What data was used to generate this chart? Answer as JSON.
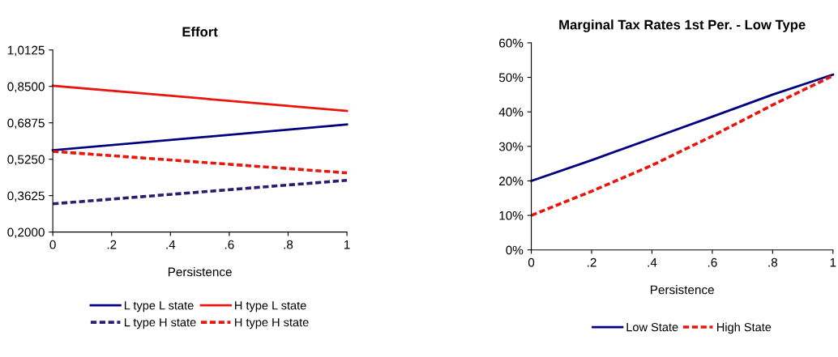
{
  "chart_data": [
    {
      "type": "line",
      "title": "Effort",
      "xlabel": "Persistence",
      "xlim": [
        0,
        1
      ],
      "xticks": [
        0,
        {
          "value": 0.2,
          "label": ".2"
        },
        {
          "value": 0.4,
          "label": ".4"
        },
        {
          "value": 0.6,
          "label": ".6"
        },
        {
          "value": 0.8,
          "label": ".8"
        },
        1
      ],
      "ylim": [
        0.2,
        1.0125
      ],
      "yticks": [
        {
          "value": 0.2,
          "label": "0,2000"
        },
        {
          "value": 0.3625,
          "label": "0,3625"
        },
        {
          "value": 0.525,
          "label": "0,5250"
        },
        {
          "value": 0.6875,
          "label": "0,6875"
        },
        {
          "value": 0.85,
          "label": "0,8500"
        },
        {
          "value": 1.0125,
          "label": "1,0125"
        }
      ],
      "x": [
        0,
        1
      ],
      "grid": false,
      "legend": "bottom",
      "marker": "none",
      "series": [
        {
          "name": "L type L state",
          "color": "#000080",
          "line_style": "solid",
          "values": [
            0.565,
            0.68
          ]
        },
        {
          "name": "L type H state",
          "color": "#2e1a6e",
          "line_style": "dashed",
          "values": [
            0.326,
            0.431
          ]
        },
        {
          "name": "H type L state",
          "color": "#e8160c",
          "line_style": "solid",
          "values": [
            0.853,
            0.741
          ]
        },
        {
          "name": "H type H state",
          "color": "#e8160c",
          "line_style": "dashed",
          "values": [
            0.56,
            0.464
          ]
        }
      ]
    },
    {
      "type": "line",
      "title": "Marginal Tax Rates 1st Per. - Low Type",
      "xlabel": "Persistence",
      "xlim": [
        0,
        1
      ],
      "xticks": [
        0,
        {
          "value": 0.2,
          "label": ".2"
        },
        {
          "value": 0.4,
          "label": ".4"
        },
        {
          "value": 0.6,
          "label": ".6"
        },
        {
          "value": 0.8,
          "label": ".8"
        },
        1
      ],
      "ylim": [
        0,
        60
      ],
      "yticks": [
        {
          "value": 0,
          "label": "0%"
        },
        {
          "value": 10,
          "label": "10%"
        },
        {
          "value": 20,
          "label": "20%"
        },
        {
          "value": 30,
          "label": "30%"
        },
        {
          "value": 40,
          "label": "40%"
        },
        {
          "value": 50,
          "label": "50%"
        },
        {
          "value": 60,
          "label": "60%"
        }
      ],
      "x": [
        0,
        0.2,
        0.4,
        0.6,
        0.8,
        1
      ],
      "grid": false,
      "legend": "bottom",
      "marker": "none",
      "series": [
        {
          "name": "Low State",
          "color": "#000080",
          "line_style": "solid",
          "values": [
            20,
            26,
            32.3,
            38.6,
            45,
            50.8
          ]
        },
        {
          "name": "High State",
          "color": "#e8160c",
          "line_style": "dashed",
          "values": [
            10,
            17,
            24.5,
            33,
            42,
            50.5
          ]
        }
      ]
    }
  ]
}
